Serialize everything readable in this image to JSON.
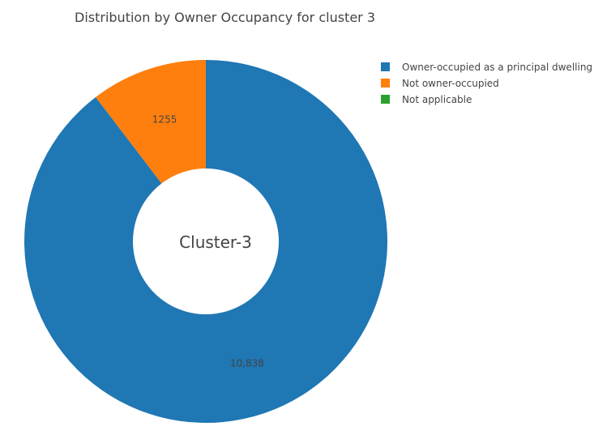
{
  "chart_data": {
    "type": "pie",
    "hole": true,
    "title": "Distribution by Owner Occupancy for cluster 3",
    "center_label": "Cluster-3",
    "categories": [
      "Owner-occupied as a principal dwelling",
      "Not owner-occupied",
      "Not applicable"
    ],
    "values": [
      10838,
      1255,
      0
    ],
    "value_labels": [
      "10,838",
      "1255",
      ""
    ],
    "colors": [
      "#1f77b4",
      "#ff7f0e",
      "#2ca02c"
    ],
    "legend_placement": "top-right"
  }
}
